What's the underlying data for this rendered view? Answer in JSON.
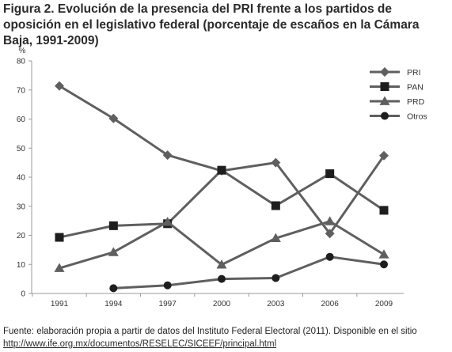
{
  "figure": {
    "title": "Figura 2. Evolución de la presencia del PRI frente a los partidos de oposición en el legislativo federal (porcentaje de escaños en la Cámara Baja, 1991-2009)",
    "source_text": "Fuente: elaboración propia a partir de datos del Instituto Federal Electoral (2011). Disponible en el sitio",
    "source_url": "http://www.ife.org.mx/documentos/RESELEC/SICEEF/principal.html"
  },
  "chart_data": {
    "type": "line",
    "x": [
      "1991",
      "1994",
      "1997",
      "2000",
      "2003",
      "2006",
      "2009"
    ],
    "ylabel": "%",
    "ylim": [
      0,
      80
    ],
    "yticks": [
      0,
      10,
      20,
      30,
      40,
      50,
      60,
      70,
      80
    ],
    "grid": false,
    "legend_position": "top-right",
    "series": [
      {
        "name": "PRI",
        "marker": "diamond",
        "color": "#5f5f5f",
        "values": [
          71.4,
          60.2,
          47.6,
          42.2,
          45.0,
          20.6,
          47.4
        ]
      },
      {
        "name": "PAN",
        "marker": "square",
        "color": "#5f5f5f",
        "values": [
          19.3,
          23.3,
          24.0,
          42.4,
          30.2,
          41.2,
          28.6
        ]
      },
      {
        "name": "PRD",
        "marker": "triangle",
        "color": "#5f5f5f",
        "values": [
          8.7,
          14.2,
          24.6,
          9.9,
          19.0,
          24.8,
          13.4
        ]
      },
      {
        "name": "Otros",
        "marker": "circle",
        "color": "#5f5f5f",
        "values": [
          null,
          1.8,
          2.8,
          5.0,
          5.3,
          12.6,
          10.0
        ]
      }
    ]
  }
}
